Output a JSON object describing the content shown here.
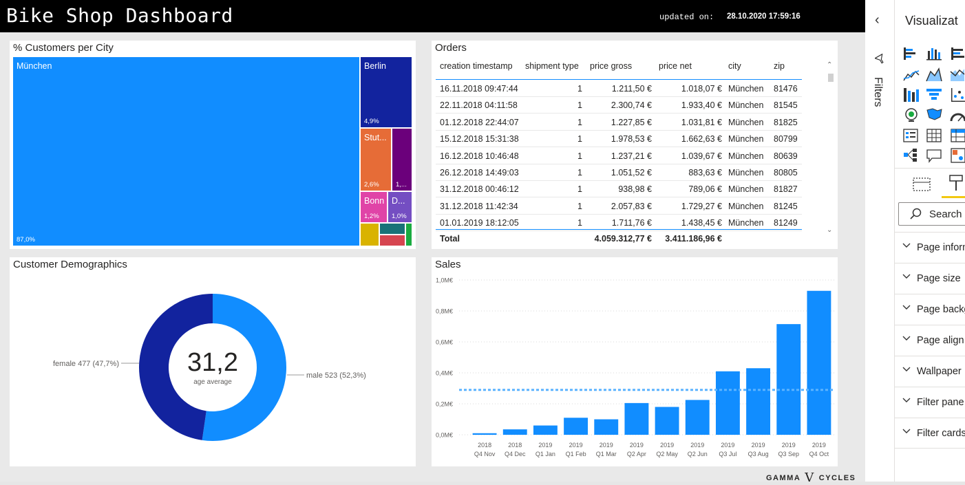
{
  "header": {
    "title": "Bike Shop Dashboard",
    "updated_label": "updated on:",
    "updated_value": "28.10.2020 17:59:16"
  },
  "treemap": {
    "title": "% Customers per City",
    "tiles": [
      {
        "name": "München",
        "pct": "87,0%",
        "color": "#118dff"
      },
      {
        "name": "Berlin",
        "pct": "4,9%",
        "color": "#12239e"
      },
      {
        "name": "Stut...",
        "pct": "2,6%",
        "color": "#e66c37"
      },
      {
        "name": "",
        "pct": "1,...",
        "color": "#6b007b"
      },
      {
        "name": "Bonn",
        "pct": "1,2%",
        "color": "#e044a7"
      },
      {
        "name": "D...",
        "pct": "1,0%",
        "color": "#744ec2"
      },
      {
        "name": "",
        "pct": "",
        "color": "#d9b300"
      },
      {
        "name": "",
        "pct": "",
        "color": "#197278"
      },
      {
        "name": "",
        "pct": "",
        "color": "#d64550"
      },
      {
        "name": "",
        "pct": "",
        "color": "#1aab40"
      }
    ]
  },
  "orders": {
    "title": "Orders",
    "columns": [
      "creation timestamp",
      "shipment type",
      "price gross",
      "price net",
      "city",
      "zip"
    ],
    "rows": [
      [
        "16.11.2018 09:47:44",
        "1",
        "1.211,50 €",
        "1.018,07 €",
        "München",
        "81476"
      ],
      [
        "22.11.2018 04:11:58",
        "1",
        "2.300,74 €",
        "1.933,40 €",
        "München",
        "81545"
      ],
      [
        "01.12.2018 22:44:07",
        "1",
        "1.227,85 €",
        "1.031,81 €",
        "München",
        "81825"
      ],
      [
        "15.12.2018 15:31:38",
        "1",
        "1.978,53 €",
        "1.662,63 €",
        "München",
        "80799"
      ],
      [
        "16.12.2018 10:46:48",
        "1",
        "1.237,21 €",
        "1.039,67 €",
        "München",
        "80639"
      ],
      [
        "26.12.2018 14:49:03",
        "1",
        "1.051,52 €",
        "883,63 €",
        "München",
        "80805"
      ],
      [
        "31.12.2018 00:46:12",
        "1",
        "938,98 €",
        "789,06 €",
        "München",
        "81827"
      ],
      [
        "31.12.2018 11:42:34",
        "1",
        "2.057,83 €",
        "1.729,27 €",
        "München",
        "81245"
      ],
      [
        "01.01.2019 18:12:05",
        "1",
        "1.711,76 €",
        "1.438,45 €",
        "München",
        "81249"
      ]
    ],
    "total": {
      "label": "Total",
      "price_gross": "4.059.312,77 €",
      "price_net": "3.411.186,96 €"
    }
  },
  "demographics": {
    "title": "Customer Demographics",
    "center_value": "31,2",
    "center_label": "age average",
    "female_label": "female 477 (47,7%)",
    "male_label": "male 523 (52,3%)",
    "female_value": 477,
    "male_value": 523,
    "female_color": "#12239e",
    "male_color": "#118dff"
  },
  "sales": {
    "title": "Sales",
    "chart_data": {
      "type": "bar",
      "y_ticks": [
        "0,0M€",
        "0,2M€",
        "0,4M€",
        "0,6M€",
        "0,8M€",
        "1,0M€"
      ],
      "ylim": [
        0,
        1.0
      ],
      "categories": [
        [
          "2018",
          "Q4 Nov"
        ],
        [
          "2018",
          "Q4 Dec"
        ],
        [
          "2019",
          "Q1 Jan"
        ],
        [
          "2019",
          "Q1 Feb"
        ],
        [
          "2019",
          "Q1 Mar"
        ],
        [
          "2019",
          "Q2 Apr"
        ],
        [
          "2019",
          "Q2 May"
        ],
        [
          "2019",
          "Q2 Jun"
        ],
        [
          "2019",
          "Q3 Jul"
        ],
        [
          "2019",
          "Q3 Aug"
        ],
        [
          "2019",
          "Q3 Sep"
        ],
        [
          "2019",
          "Q4 Oct"
        ]
      ],
      "values": [
        0.01,
        0.035,
        0.06,
        0.11,
        0.1,
        0.205,
        0.18,
        0.225,
        0.41,
        0.43,
        0.715,
        0.93
      ],
      "average_line": 0.29,
      "bar_color": "#118dff",
      "average_line_color": "#5cb3ff",
      "grid": true
    }
  },
  "filters": {
    "label": "Filters"
  },
  "viz_pane": {
    "title": "Visualizat",
    "search_placeholder": "Search",
    "sections": [
      "Page inform",
      "Page size",
      "Page backg",
      "Page align",
      "Wallpaper",
      "Filter pane",
      "Filter cards"
    ]
  },
  "footer": {
    "left": "GAMMA",
    "mark": "V",
    "right": "CYCLES"
  }
}
